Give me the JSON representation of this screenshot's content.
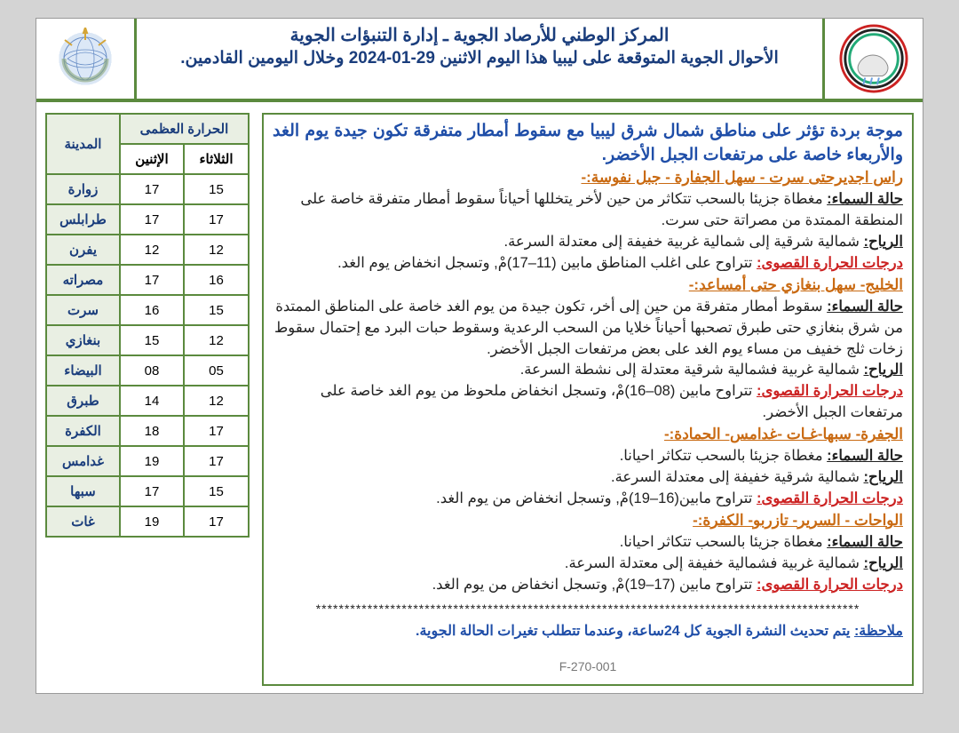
{
  "colors": {
    "border_green": "#5b8a3e",
    "header_text": "#1a3d7c",
    "region_orange": "#c96a12",
    "summary_blue": "#1f4ea8",
    "temp_red": "#c22222",
    "page_bg": "#d4d4d4",
    "table_shade": "#e9efe3"
  },
  "header": {
    "title1": "المركز الوطني للأرصاد الجوية ـ إدارة التنبؤات الجوية",
    "title2": "الأحوال الجوية المتوقعة على ليبيا هذا اليوم الاثنين 29-01-2024 وخلال اليومين القادمين."
  },
  "summary": "موجة بردة تؤثر على مناطق شمال شرق ليبيا مع سقوط أمطار متفرقة تكون جيدة يوم الغد والأربعاء خاصة على مرتفعات الجبل الأخضر.",
  "regions": [
    {
      "title": "راس اجديرحتى سرت - سهل الجفارة - جبل نفوسة:-",
      "sky_label": "حالة السماء:",
      "sky": "مغطاة جزيئا بالسحب تتكاثر من حين لأخر يتخللها أحياناً سقوط أمطار متفرقة خاصة على المنطقة الممتدة من مصراتة حتى سرت.",
      "wind_label": "الرياح:",
      "wind": "شمالية شرقية إلى شمالية غربية خفيفة إلى معتدلة السرعة.",
      "temp_label": "درجات الحرارة القصوى:",
      "temp": "تتراوح على اغلب المناطق مابين (11–17)مْ, وتسجل انخفاض يوم الغد."
    },
    {
      "title": "الخليج- سهل بنغازي حتى أمساعد:-",
      "sky_label": "حالة السماء:",
      "sky": "سقوط أمطار متفرقة من حين إلى أخر، تكون جيدة من يوم الغد خاصة على المناطق الممتدة من شرق بنغازي حتى طبرق تصحبها أحياناً خلايا من السحب الرعدية وسقوط حبات البرد مع إحتمال سقوط زخات ثلج خفيف من مساء يوم الغد على بعض مرتفعات الجبل الأخضر.",
      "wind_label": "الرياح:",
      "wind": "شمالية غربية فشمالية شرقية معتدلة إلى نشطة السرعة.",
      "temp_label": "درجات الحرارة القصوى:",
      "temp": "تتراوح مابين (08–16)مْ، وتسجل انخفاض ملحوظ من يوم الغد خاصة على مرتفعات الجبل الأخضر."
    },
    {
      "title": "الجفرة- سبها-غـات -غدامس- الحمادة:-",
      "sky_label": "حالة السماء:",
      "sky": "مغطاة جزيئا بالسحب تتكاثر احيانا.",
      "wind_label": "الرياح:",
      "wind": "شمالية شرقية خفيفة إلى معتدلة السرعة.",
      "temp_label": "درجات الحرارة القصوى:",
      "temp": "تتراوح مابين(16–19)مْ, وتسجل انخفاض من يوم الغد."
    },
    {
      "title": "الواحات - السرير- تازربو- الكفرة:-",
      "sky_label": "حالة السماء:",
      "sky": "مغطاة جزيئا بالسحب تتكاثر احيانا.",
      "wind_label": "الرياح:",
      "wind": "شمالية غربية فشمالية خفيفة إلى معتدلة السرعة.",
      "temp_label": "درجات الحرارة القصوى:",
      "temp": "تتراوح مابين (17–19)مْ, وتسجل انخفاض من يوم الغد."
    }
  ],
  "stars": "***********************************************************************************************",
  "note_label": "ملاحظة:",
  "note_text": "يتم تحديث النشرة الجوية كل 24ساعة، وعندما تتطلب تغيرات الحالة الجوية.",
  "footer_code": "F-270-001",
  "table": {
    "header_max": "الحرارة العظمى",
    "header_city": "المدينة",
    "header_mon": "الإثنين",
    "header_tue": "الثلاثاء",
    "rows": [
      {
        "city": "زوارة",
        "mon": "17",
        "tue": "15"
      },
      {
        "city": "طرابلس",
        "mon": "17",
        "tue": "17"
      },
      {
        "city": "يفرن",
        "mon": "12",
        "tue": "12"
      },
      {
        "city": "مصراته",
        "mon": "17",
        "tue": "16"
      },
      {
        "city": "سرت",
        "mon": "16",
        "tue": "15"
      },
      {
        "city": "بنغازي",
        "mon": "15",
        "tue": "12"
      },
      {
        "city": "البيضاء",
        "mon": "08",
        "tue": "05"
      },
      {
        "city": "طبرق",
        "mon": "14",
        "tue": "12"
      },
      {
        "city": "الكفرة",
        "mon": "18",
        "tue": "17"
      },
      {
        "city": "غدامس",
        "mon": "19",
        "tue": "17"
      },
      {
        "city": "سبها",
        "mon": "17",
        "tue": "15"
      },
      {
        "city": "غات",
        "mon": "19",
        "tue": "17"
      }
    ]
  }
}
